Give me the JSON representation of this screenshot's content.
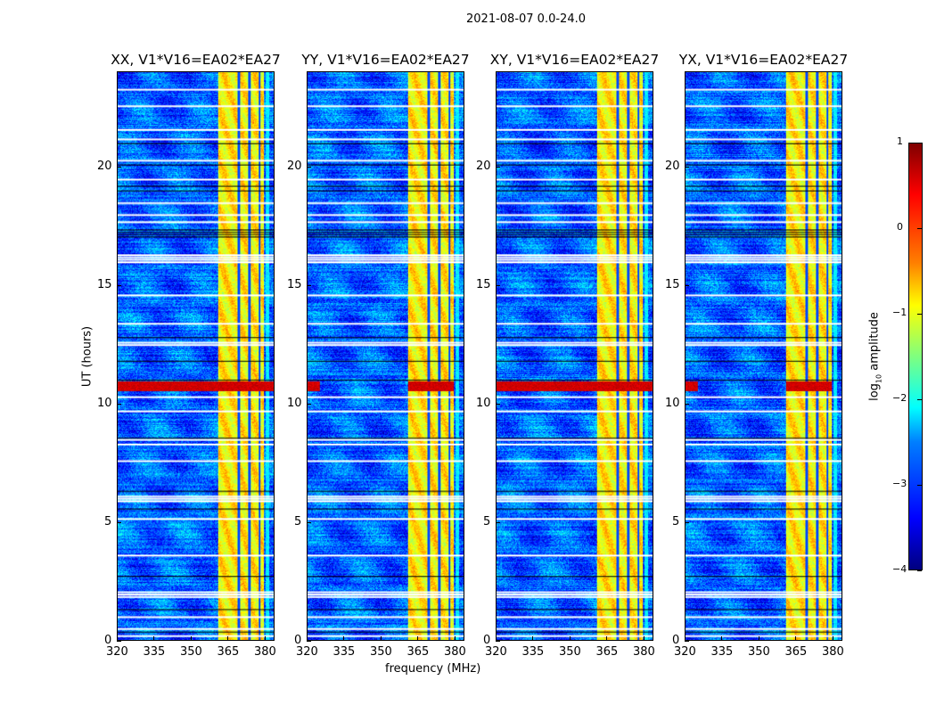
{
  "suptitle": "2021-08-07 0.0-24.0",
  "chart_data": {
    "type": "heatmap",
    "title": "2021-08-07 0.0-24.0",
    "xlabel": "frequency (MHz)",
    "ylabel": "UT (hours)",
    "xlim": [
      320,
      384
    ],
    "ylim": [
      0,
      24
    ],
    "xticks": [
      320,
      335,
      350,
      365,
      380
    ],
    "yticks": [
      0,
      5,
      10,
      15,
      20
    ],
    "panels": [
      {
        "title": "XX, V1*V16=EA02*EA27",
        "flare_full_band": true
      },
      {
        "title": "YY, V1*V16=EA02*EA27",
        "flare_full_band": false
      },
      {
        "title": "XY, V1*V16=EA02*EA27",
        "flare_full_band": true
      },
      {
        "title": "YX, V1*V16=EA02*EA27",
        "flare_full_band": false
      }
    ],
    "background_log_amplitude": -2.9,
    "rfi_band_mhz": [
      361,
      380
    ],
    "rfi_band_log_amplitude": -0.8,
    "rfi_gaps_mhz": [
      369.5,
      374,
      378
    ],
    "flare_hours": [
      10.55,
      10.95
    ],
    "flare_log_amplitude": 0.6,
    "flagged_hours_white": [
      0.2,
      0.5,
      1.0,
      1.85,
      1.95,
      2.05,
      3.6,
      5.15,
      5.9,
      6.0,
      6.1,
      7.6,
      8.3,
      8.5,
      9.7,
      10.3,
      12.5,
      12.6,
      13.4,
      14.6,
      16.0,
      16.1,
      16.2,
      16.3,
      17.7,
      18.0,
      18.5,
      19.5,
      20.3,
      21.2,
      21.6,
      22.6,
      23.3
    ],
    "flagged_hours_black": [
      0.35,
      1.3,
      2.7,
      5.55,
      6.3,
      8.55,
      11.0,
      11.8,
      12.8,
      17.05,
      17.15,
      17.25,
      17.35,
      19.0,
      19.2,
      20.1,
      21.0
    ],
    "colorbar": {
      "label": "log10 amplitude",
      "range": [
        -4,
        1
      ],
      "ticks": [
        1,
        0,
        -1,
        -2,
        -3,
        -4
      ],
      "tick_labels": [
        "1",
        "0",
        "−1",
        "−2",
        "−3",
        "−4"
      ],
      "colormap": "jet"
    }
  }
}
